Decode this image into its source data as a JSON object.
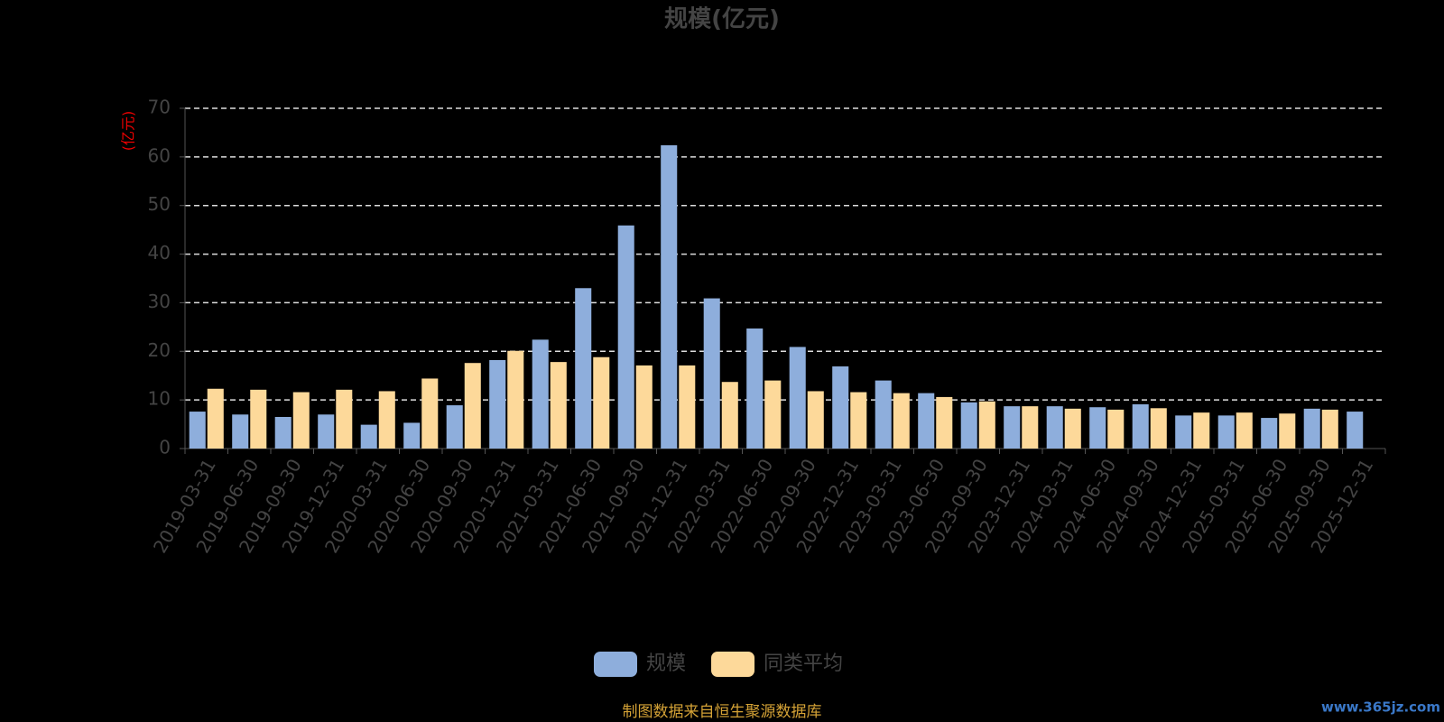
{
  "chart_data": {
    "type": "bar",
    "title": "规模(亿元)",
    "y_axis_label": "(亿元)",
    "categories": [
      "2019-03-31",
      "2019-06-30",
      "2019-09-30",
      "2019-12-31",
      "2020-03-31",
      "2020-06-30",
      "2020-09-30",
      "2020-12-31",
      "2021-03-31",
      "2021-06-30",
      "2021-09-30",
      "2021-12-31",
      "2022-03-31",
      "2022-06-30",
      "2022-09-30",
      "2022-12-31",
      "2023-03-31",
      "2023-06-30",
      "2023-09-30",
      "2023-12-31",
      "2024-03-31",
      "2024-06-30",
      "2024-09-30",
      "2024-12-31",
      "2025-03-31",
      "2025-06-30",
      "2025-09-30",
      "2025-12-31"
    ],
    "series": [
      {
        "name": "规模",
        "color": "#8eaedc",
        "values": [
          7.6,
          7.0,
          6.5,
          7.0,
          4.9,
          5.3,
          8.9,
          18.2,
          22.4,
          33.0,
          45.9,
          62.4,
          30.9,
          24.7,
          20.9,
          16.9,
          14.0,
          11.4,
          9.5,
          8.7,
          8.7,
          8.5,
          9.1,
          6.8,
          6.8,
          6.3,
          8.2,
          7.6
        ]
      },
      {
        "name": "同类平均",
        "color": "#fdd99a",
        "values": [
          12.3,
          12.1,
          11.6,
          12.1,
          11.8,
          14.4,
          17.6,
          20.1,
          17.8,
          18.8,
          17.1,
          17.1,
          13.7,
          14.0,
          11.8,
          11.6,
          11.4,
          10.6,
          9.7,
          8.7,
          8.2,
          8.0,
          8.3,
          7.4,
          7.4,
          7.2,
          8.0,
          null
        ]
      }
    ],
    "ylim": [
      0,
      70
    ],
    "yticks": [
      0,
      10,
      20,
      30,
      40,
      50,
      60,
      70
    ],
    "grid": true,
    "source": "制图数据来自恒生聚源数据库",
    "watermark": "www.365jz.com"
  }
}
